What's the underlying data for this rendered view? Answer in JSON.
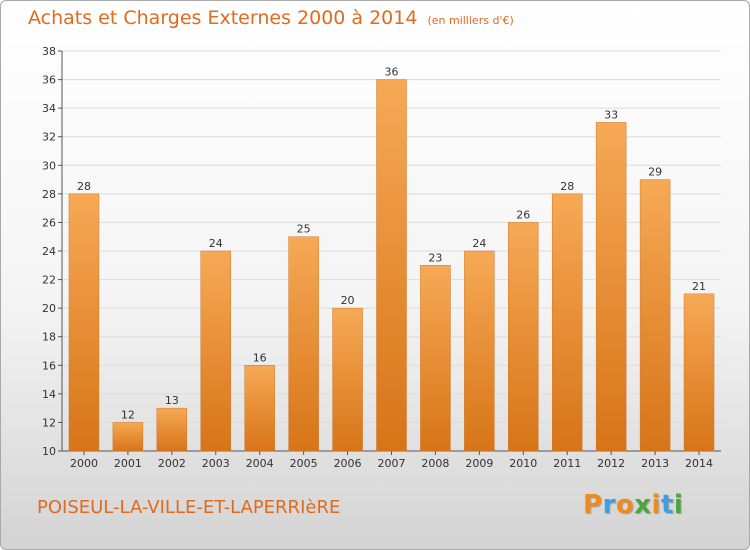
{
  "chart_data": {
    "type": "bar",
    "title": "Achats et Charges Externes 2000 à 2014",
    "unit_note": "(en milliers d'€)",
    "categories": [
      "2000",
      "2001",
      "2002",
      "2003",
      "2004",
      "2005",
      "2006",
      "2007",
      "2008",
      "2009",
      "2010",
      "2011",
      "2012",
      "2013",
      "2014"
    ],
    "values": [
      28,
      12,
      13,
      24,
      16,
      25,
      20,
      36,
      23,
      24,
      26,
      28,
      33,
      29,
      21
    ],
    "ylim": [
      10,
      38
    ],
    "yticks": [
      10,
      12,
      14,
      16,
      18,
      20,
      22,
      24,
      26,
      28,
      30,
      32,
      34,
      36,
      38
    ],
    "grid": true,
    "bar_color": "#f29a3f",
    "bar_color_light": "#f6a955",
    "bar_color_dark": "#d77418"
  },
  "footer": {
    "commune": "POISEUL-LA-VILLE-ET-LAPERRIèRE"
  },
  "logo": {
    "letters": [
      "P",
      "r",
      "o",
      "x",
      "i",
      "t",
      "i"
    ],
    "colors": [
      "#f08a1c",
      "#3f9fe0",
      "#f08a1c",
      "#4aa83a",
      "#f08a1c",
      "#3f9fe0",
      "#4aa83a"
    ]
  },
  "colors": {
    "title": "#e06a1e",
    "grid": "#dcdcdc",
    "axis": "#555555"
  }
}
